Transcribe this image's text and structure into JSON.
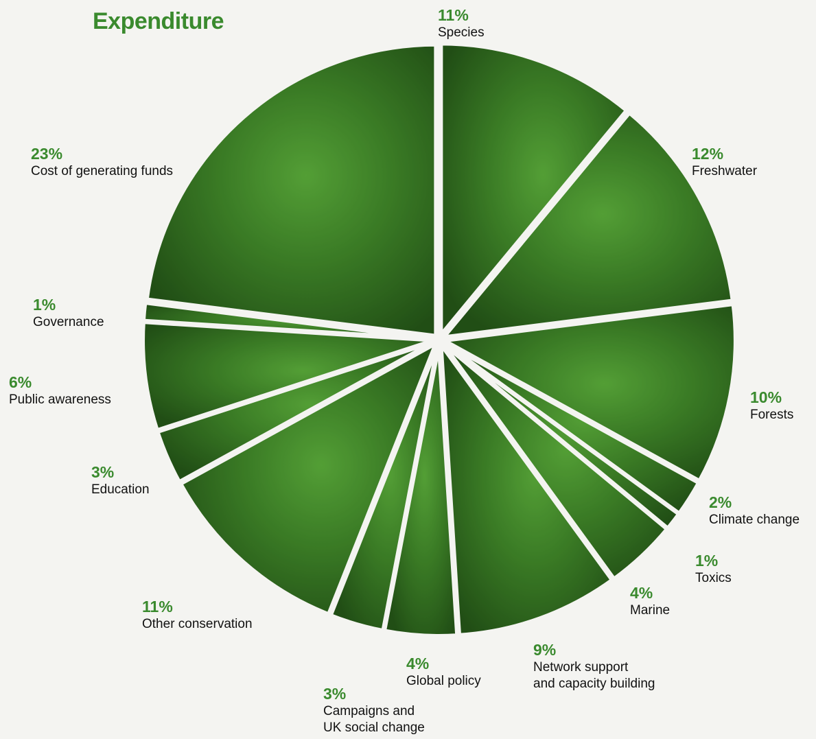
{
  "chart_data": {
    "type": "pie",
    "title": "Expenditure",
    "color": "#2f6a1e",
    "categories": [
      "Species",
      "Freshwater",
      "Forests",
      "Climate change",
      "Toxics",
      "Marine",
      "Network support\nand capacity building",
      "Global policy",
      "Campaigns and\nUK social change",
      "Other conservation",
      "Education",
      "Public awareness",
      "Governance",
      "Cost of generating funds"
    ],
    "values": [
      11,
      12,
      10,
      2,
      1,
      4,
      9,
      4,
      3,
      11,
      3,
      6,
      1,
      23
    ],
    "value_labels": [
      "11%",
      "12%",
      "10%",
      "2%",
      "1%",
      "4%",
      "9%",
      "4%",
      "3%",
      "11%",
      "3%",
      "6%",
      "1%",
      "23%"
    ]
  }
}
